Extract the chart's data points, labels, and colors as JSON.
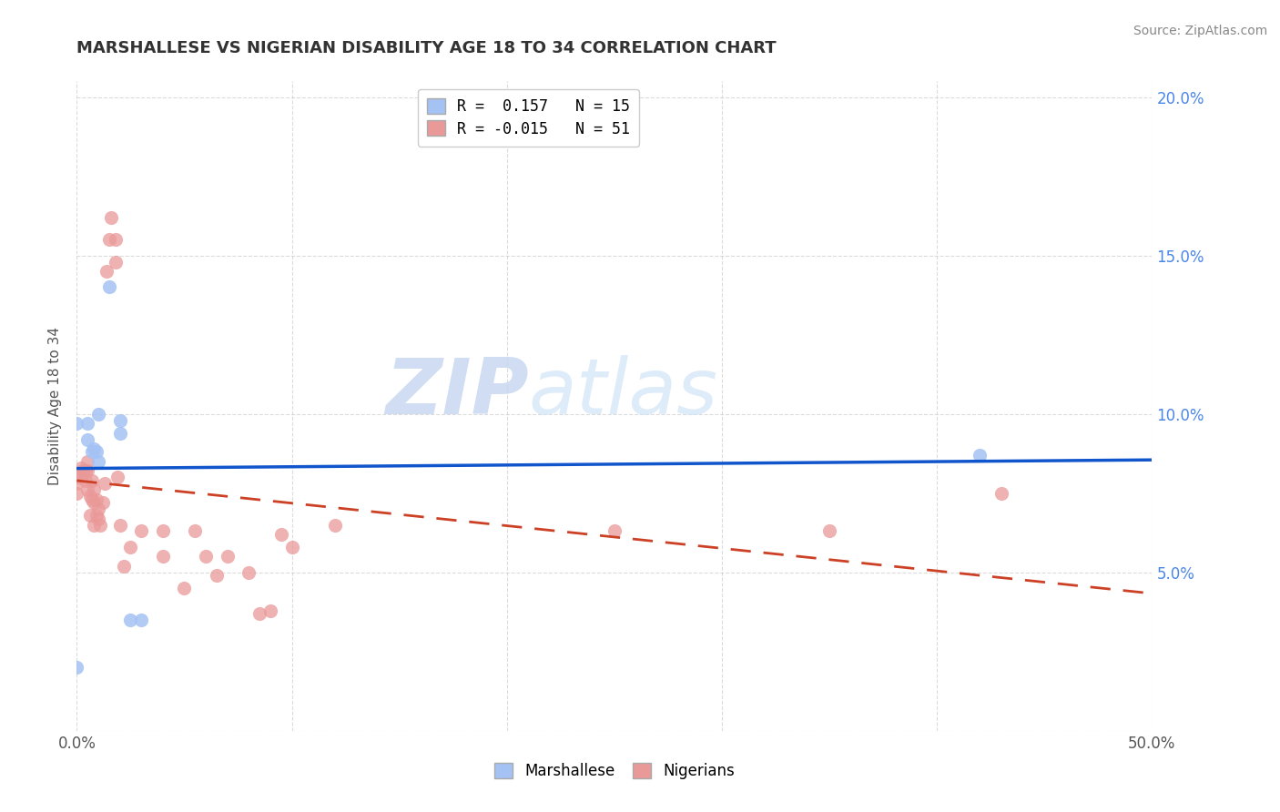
{
  "title": "MARSHALLESE VS NIGERIAN DISABILITY AGE 18 TO 34 CORRELATION CHART",
  "source": "Source: ZipAtlas.com",
  "ylabel_label": "Disability Age 18 to 34",
  "x_min": 0.0,
  "x_max": 0.5,
  "y_min": 0.0,
  "y_max": 0.205,
  "x_ticks": [
    0.0,
    0.1,
    0.2,
    0.3,
    0.4,
    0.5
  ],
  "x_tick_labels": [
    "0.0%",
    "",
    "",
    "",
    "",
    "50.0%"
  ],
  "y_ticks": [
    0.0,
    0.05,
    0.1,
    0.15,
    0.2
  ],
  "y_tick_labels": [
    "",
    "5.0%",
    "10.0%",
    "15.0%",
    "20.0%"
  ],
  "marshallese_color": "#a4c2f4",
  "nigerian_color": "#ea9999",
  "marshallese_line_color": "#1155cc",
  "nigerian_line_color": "#cc4125",
  "legend_r_marshallese": "R =  0.157",
  "legend_n_marshallese": "N = 15",
  "legend_r_nigerian": "R = -0.015",
  "legend_n_nigerian": "N = 51",
  "watermark_zip": "ZIP",
  "watermark_atlas": "atlas",
  "marshallese_points_x": [
    0.0,
    0.0,
    0.005,
    0.005,
    0.007,
    0.008,
    0.009,
    0.01,
    0.01,
    0.015,
    0.02,
    0.02,
    0.025,
    0.03,
    0.42
  ],
  "marshallese_points_y": [
    0.02,
    0.097,
    0.097,
    0.092,
    0.088,
    0.089,
    0.088,
    0.085,
    0.1,
    0.14,
    0.098,
    0.094,
    0.035,
    0.035,
    0.087
  ],
  "nigerian_points_x": [
    0.0,
    0.0,
    0.0,
    0.002,
    0.002,
    0.003,
    0.004,
    0.004,
    0.005,
    0.005,
    0.005,
    0.006,
    0.006,
    0.007,
    0.007,
    0.008,
    0.008,
    0.008,
    0.009,
    0.009,
    0.01,
    0.01,
    0.011,
    0.012,
    0.013,
    0.014,
    0.015,
    0.016,
    0.018,
    0.018,
    0.019,
    0.02,
    0.022,
    0.025,
    0.03,
    0.04,
    0.04,
    0.05,
    0.055,
    0.06,
    0.065,
    0.07,
    0.08,
    0.085,
    0.09,
    0.095,
    0.1,
    0.12,
    0.25,
    0.35,
    0.43
  ],
  "nigerian_points_y": [
    0.08,
    0.078,
    0.075,
    0.083,
    0.08,
    0.082,
    0.079,
    0.082,
    0.076,
    0.082,
    0.085,
    0.068,
    0.074,
    0.073,
    0.079,
    0.065,
    0.072,
    0.076,
    0.068,
    0.073,
    0.067,
    0.07,
    0.065,
    0.072,
    0.078,
    0.145,
    0.155,
    0.162,
    0.148,
    0.155,
    0.08,
    0.065,
    0.052,
    0.058,
    0.063,
    0.063,
    0.055,
    0.045,
    0.063,
    0.055,
    0.049,
    0.055,
    0.05,
    0.037,
    0.038,
    0.062,
    0.058,
    0.065,
    0.063,
    0.063,
    0.075
  ],
  "background_color": "#ffffff",
  "grid_color": "#cccccc"
}
